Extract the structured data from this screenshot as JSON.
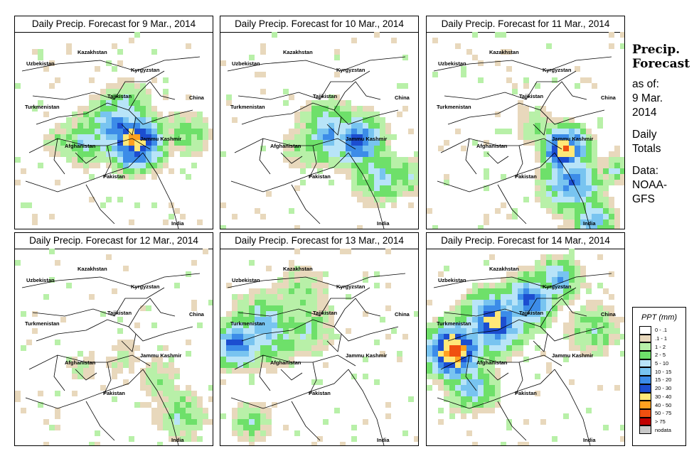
{
  "panels": [
    {
      "title": "Daily Precip. Forecast for  9 Mar., 2014",
      "pattern": "east"
    },
    {
      "title": "Daily Precip. Forecast for  10 Mar., 2014",
      "pattern": "east2"
    },
    {
      "title": "Daily Precip. Forecast for  11 Mar., 2014",
      "pattern": "kashmir"
    },
    {
      "title": "Daily Precip. Forecast for  12 Mar., 2014",
      "pattern": "light"
    },
    {
      "title": "Daily Precip. Forecast for  13 Mar., 2014",
      "pattern": "west"
    },
    {
      "title": "Daily Precip. Forecast for  14 Mar., 2014",
      "pattern": "westheavy"
    }
  ],
  "map_labels": {
    "kazakhstan": "Kazakhstan",
    "uzbekistan": "Uzbekistan",
    "kyrgyzstan": "Kyrgyzstan",
    "tajikistan": "Tajikistan",
    "turkmenistan": "Turkmenistan",
    "china": "China",
    "afghanistan": "Afghanistan",
    "jammu_kashmir": "Jammu Kashmir",
    "pakistan": "Pakistan",
    "india": "India"
  },
  "side": {
    "title_line1": "Precip.",
    "title_line2": "Forecast",
    "asof": "as of:",
    "date1": "9 Mar.",
    "date2": "2014",
    "daily": "Daily",
    "totals": "Totals",
    "data": "Data:",
    "src1": "NOAA-",
    "src2": "GFS"
  },
  "legend": {
    "title": "PPT (mm)",
    "items": [
      {
        "label": "0 - .1",
        "color": "#ffffff"
      },
      {
        "label": ".1 - 1",
        "color": "#e8d8bc"
      },
      {
        "label": "1 - 2",
        "color": "#b8f0a8"
      },
      {
        "label": "2 - 5",
        "color": "#6ee06a"
      },
      {
        "label": "5 - 10",
        "color": "#b8e4f8"
      },
      {
        "label": "10 - 15",
        "color": "#78c4f0"
      },
      {
        "label": "15 - 20",
        "color": "#3c8ce8"
      },
      {
        "label": "20 - 30",
        "color": "#1c4ed0"
      },
      {
        "label": "30 - 40",
        "color": "#ffe878"
      },
      {
        "label": "40 - 50",
        "color": "#ffa020"
      },
      {
        "label": "50 - 75",
        "color": "#f05010"
      },
      {
        "label": "> 75",
        "color": "#c00000"
      },
      {
        "label": "nodata",
        "color": "#c8c8c8"
      }
    ]
  }
}
